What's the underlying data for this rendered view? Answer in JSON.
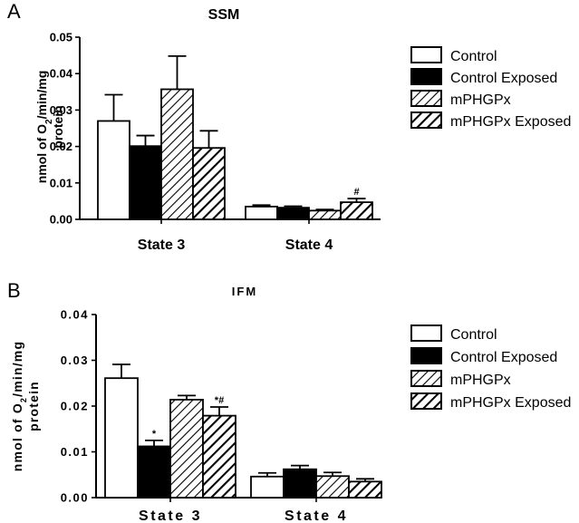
{
  "chart_data": [
    {
      "panel": "A",
      "type": "bar",
      "title": "SSM",
      "ylabel_line1": "nmol of O",
      "ylabel_sub": "2",
      "ylabel_rest": "/min/mg",
      "ylabel_line2": "protein",
      "categories": [
        "State 3",
        "State 4"
      ],
      "ylim": [
        0,
        0.05
      ],
      "yticks": [
        "0.00",
        "0.01",
        "0.02",
        "0.03",
        "0.04",
        "0.05"
      ],
      "series": [
        {
          "name": "Control",
          "values": [
            0.027,
            0.0035
          ],
          "errors": [
            0.0072,
            0.0004
          ],
          "fill": "white"
        },
        {
          "name": "Control Exposed",
          "values": [
            0.0201,
            0.0032
          ],
          "errors": [
            0.0029,
            0.0004
          ],
          "fill": "black"
        },
        {
          "name": "mPHGPx",
          "values": [
            0.0357,
            0.0024
          ],
          "errors": [
            0.0091,
            0.0003
          ],
          "fill": "hatch"
        },
        {
          "name": "mPHGPx Exposed",
          "values": [
            0.0196,
            0.0047
          ],
          "errors": [
            0.0047,
            0.001
          ],
          "fill": "hatch-bold"
        }
      ],
      "annotations": [
        {
          "series": 3,
          "category": 1,
          "text": "#"
        }
      ],
      "legend_position": "right"
    },
    {
      "panel": "B",
      "type": "bar",
      "title": "IFM",
      "ylabel_line1": "nmol of O",
      "ylabel_sub": "2",
      "ylabel_rest": "/min/mg",
      "ylabel_line2": "protein",
      "categories": [
        "State 3",
        "State 4"
      ],
      "ylim": [
        0,
        0.04
      ],
      "yticks": [
        "0.00",
        "0.01",
        "0.02",
        "0.03",
        "0.04"
      ],
      "series": [
        {
          "name": "Control",
          "values": [
            0.0261,
            0.0046
          ],
          "errors": [
            0.003,
            0.0008
          ],
          "fill": "white"
        },
        {
          "name": "Control Exposed",
          "values": [
            0.0112,
            0.0062
          ],
          "errors": [
            0.0013,
            0.0008
          ],
          "fill": "black"
        },
        {
          "name": "mPHGPx",
          "values": [
            0.0214,
            0.0047
          ],
          "errors": [
            0.0009,
            0.0008
          ],
          "fill": "hatch"
        },
        {
          "name": "mPHGPx Exposed",
          "values": [
            0.0179,
            0.0035
          ],
          "errors": [
            0.0019,
            0.0006
          ],
          "fill": "hatch-bold"
        }
      ],
      "annotations": [
        {
          "series": 1,
          "category": 0,
          "text": "*"
        },
        {
          "series": 3,
          "category": 0,
          "text": "*#"
        }
      ],
      "legend_position": "right"
    }
  ]
}
